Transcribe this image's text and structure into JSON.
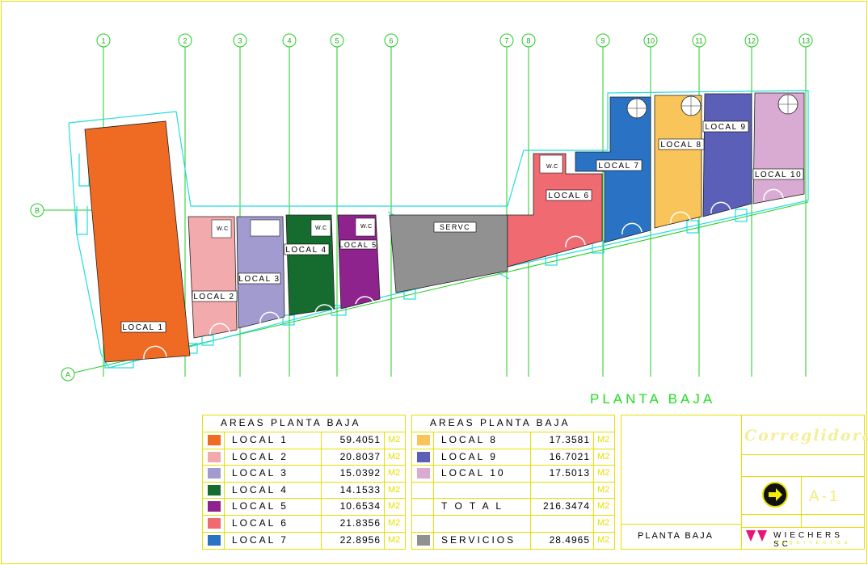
{
  "grid": {
    "columns": [
      "1",
      "2",
      "3",
      "4",
      "5",
      "6",
      "7",
      "8",
      "9",
      "10",
      "11",
      "12",
      "13"
    ],
    "rows": [
      "A",
      "B"
    ]
  },
  "units": {
    "local_1": "LOCAL 1",
    "local_2": "LOCAL 2",
    "local_3": "LOCAL 3",
    "local_4": "LOCAL 4",
    "local_5": "LOCAL 5",
    "local_6": "LOCAL 6",
    "local_7": "LOCAL 7",
    "local_8": "LOCAL 8",
    "local_9": "LOCAL 9",
    "local_10": "LOCAL 10",
    "services": "SERVC",
    "wc": "W.C"
  },
  "colors": {
    "local_1": "#ef6a22",
    "local_2": "#f2aaac",
    "local_3": "#a29bd0",
    "local_4": "#166b2e",
    "local_5": "#8e238e",
    "local_6": "#f06a72",
    "local_7": "#2a73c4",
    "local_8": "#f9c459",
    "local_9": "#5b5fb7",
    "local_10": "#d9abd2",
    "services": "#919191",
    "grid": "#22cc22",
    "outline": "#22dddd",
    "border": "#e6e000"
  },
  "drawing_title": "PLANTA BAJA",
  "areas_left": {
    "header": "AREAS PLANTA BAJA",
    "rows": [
      {
        "label": "LOCAL 1",
        "value": "59.4051",
        "unit": "M2",
        "color": "#ef6a22"
      },
      {
        "label": "LOCAL 2",
        "value": "20.8037",
        "unit": "M2",
        "color": "#f2aaac"
      },
      {
        "label": "LOCAL 3",
        "value": "15.0392",
        "unit": "M2",
        "color": "#a29bd0"
      },
      {
        "label": "LOCAL 4",
        "value": "14.1533",
        "unit": "M2",
        "color": "#166b2e"
      },
      {
        "label": "LOCAL 5",
        "value": "10.6534",
        "unit": "M2",
        "color": "#8e238e"
      },
      {
        "label": "LOCAL 6",
        "value": "21.8356",
        "unit": "M2",
        "color": "#f06a72"
      },
      {
        "label": "LOCAL 7",
        "value": "22.8956",
        "unit": "M2",
        "color": "#2a73c4"
      }
    ]
  },
  "areas_right": {
    "header": "AREAS PLANTA BAJA",
    "rows": [
      {
        "label": "LOCAL 8",
        "value": "17.3581",
        "unit": "M2",
        "color": "#f9c459"
      },
      {
        "label": "LOCAL 9",
        "value": "16.7021",
        "unit": "M2",
        "color": "#5b5fb7"
      },
      {
        "label": "LOCAL 10",
        "value": "17.5013",
        "unit": "M2",
        "color": "#d9abd2"
      },
      {
        "label": "",
        "value": "",
        "unit": "M2",
        "color": ""
      },
      {
        "label": "T O T A L",
        "value": "216.3474",
        "unit": "M2",
        "color": ""
      },
      {
        "label": "",
        "value": "",
        "unit": "M2",
        "color": ""
      },
      {
        "label": "SERVICIOS",
        "value": "28.4965",
        "unit": "M2",
        "color": "#919191"
      }
    ]
  },
  "title_block": {
    "sheet_name": "PLANTA BAJA",
    "sheet_number": "A-1",
    "project_logo": "Correglidora",
    "firm": "WIECHERS SC",
    "firm_sub": "A R Q U I T E C T O S"
  }
}
